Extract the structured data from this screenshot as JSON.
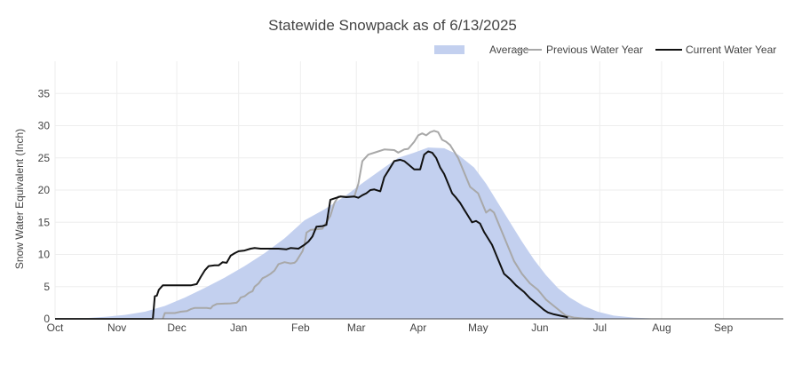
{
  "chart_data": {
    "type": "area",
    "title": "Statewide Snowpack as of 6/13/2025",
    "ylabel": "Snow Water Equivalent (Inch)",
    "xlabel": "",
    "x_unit": "day of water year (Oct 1 = 0)",
    "ylim": [
      0,
      40
    ],
    "yticks": [
      0,
      5,
      10,
      15,
      20,
      25,
      30,
      35
    ],
    "grid": true,
    "legend_position": "top-right",
    "months": [
      {
        "label": "Oct",
        "x": 0
      },
      {
        "label": "Nov",
        "x": 31
      },
      {
        "label": "Dec",
        "x": 61
      },
      {
        "label": "Jan",
        "x": 92
      },
      {
        "label": "Feb",
        "x": 123
      },
      {
        "label": "Mar",
        "x": 151
      },
      {
        "label": "Apr",
        "x": 182
      },
      {
        "label": "May",
        "x": 212
      },
      {
        "label": "Jun",
        "x": 243
      },
      {
        "label": "Jul",
        "x": 273
      },
      {
        "label": "Aug",
        "x": 304
      },
      {
        "label": "Sep",
        "x": 335
      }
    ],
    "xlim": [
      0,
      365
    ],
    "series": [
      {
        "name": "Average",
        "kind": "area",
        "color": "#c3d0ef",
        "points": [
          [
            0,
            0
          ],
          [
            15,
            0.1
          ],
          [
            25,
            0.3
          ],
          [
            35,
            0.6
          ],
          [
            45,
            1.1
          ],
          [
            55,
            2
          ],
          [
            65,
            3.3
          ],
          [
            75,
            4.8
          ],
          [
            85,
            6.4
          ],
          [
            95,
            8.2
          ],
          [
            105,
            10.2
          ],
          [
            115,
            12.5
          ],
          [
            125,
            15.3
          ],
          [
            135,
            17
          ],
          [
            145,
            19
          ],
          [
            155,
            21.3
          ],
          [
            165,
            23.5
          ],
          [
            172,
            25
          ],
          [
            180,
            25.8
          ],
          [
            187,
            26.6
          ],
          [
            195,
            26.5
          ],
          [
            202,
            25.5
          ],
          [
            210,
            23.5
          ],
          [
            216,
            21
          ],
          [
            222,
            18
          ],
          [
            228,
            15
          ],
          [
            234,
            12
          ],
          [
            240,
            9.2
          ],
          [
            246,
            6.8
          ],
          [
            252,
            4.8
          ],
          [
            258,
            3.3
          ],
          [
            265,
            2
          ],
          [
            272,
            1.1
          ],
          [
            280,
            0.5
          ],
          [
            290,
            0.2
          ],
          [
            300,
            0.05
          ],
          [
            310,
            0
          ],
          [
            365,
            0
          ]
        ]
      },
      {
        "name": "Previous Water Year",
        "kind": "line",
        "color": "#a8a8a8",
        "points": [
          [
            54,
            0
          ],
          [
            55,
            0.9
          ],
          [
            60,
            0.9
          ],
          [
            63,
            1.1
          ],
          [
            66,
            1.2
          ],
          [
            68,
            1.5
          ],
          [
            70,
            1.7
          ],
          [
            76,
            1.7
          ],
          [
            78,
            1.6
          ],
          [
            79,
            2
          ],
          [
            81,
            2.3
          ],
          [
            88,
            2.4
          ],
          [
            91,
            2.5
          ],
          [
            92,
            2.8
          ],
          [
            93,
            3.3
          ],
          [
            95,
            3.5
          ],
          [
            97,
            4
          ],
          [
            99,
            4.3
          ],
          [
            100,
            5
          ],
          [
            102,
            5.5
          ],
          [
            104,
            6.3
          ],
          [
            106,
            6.6
          ],
          [
            108,
            7
          ],
          [
            110,
            7.5
          ],
          [
            112,
            8.5
          ],
          [
            115,
            8.8
          ],
          [
            118,
            8.6
          ],
          [
            120,
            8.7
          ],
          [
            121,
            9
          ],
          [
            124,
            10.5
          ],
          [
            125,
            11.5
          ],
          [
            126,
            13.4
          ],
          [
            128,
            13.8
          ],
          [
            134,
            14
          ],
          [
            136,
            15
          ],
          [
            138,
            16
          ],
          [
            140,
            18
          ],
          [
            142,
            19
          ],
          [
            150,
            19
          ],
          [
            152,
            21
          ],
          [
            154,
            24.5
          ],
          [
            157,
            25.5
          ],
          [
            162,
            26
          ],
          [
            165,
            26.3
          ],
          [
            170,
            26.2
          ],
          [
            172,
            25.8
          ],
          [
            175,
            26.3
          ],
          [
            177,
            26.4
          ],
          [
            180,
            27.5
          ],
          [
            182,
            28.5
          ],
          [
            184,
            28.8
          ],
          [
            186,
            28.5
          ],
          [
            188,
            29
          ],
          [
            190,
            29.2
          ],
          [
            192,
            29
          ],
          [
            194,
            27.8
          ],
          [
            196,
            27.5
          ],
          [
            198,
            27
          ],
          [
            200,
            26
          ],
          [
            202,
            25
          ],
          [
            204,
            23.5
          ],
          [
            206,
            22
          ],
          [
            208,
            20.5
          ],
          [
            210,
            20
          ],
          [
            212,
            19.5
          ],
          [
            214,
            18
          ],
          [
            216,
            16.5
          ],
          [
            218,
            17
          ],
          [
            220,
            16.5
          ],
          [
            222,
            15
          ],
          [
            226,
            12
          ],
          [
            230,
            9
          ],
          [
            234,
            7
          ],
          [
            238,
            5.5
          ],
          [
            242,
            4.5
          ],
          [
            246,
            3
          ],
          [
            250,
            2
          ],
          [
            252,
            1.5
          ],
          [
            254,
            1
          ],
          [
            256,
            0.5
          ],
          [
            260,
            0.2
          ],
          [
            265,
            0.05
          ],
          [
            270,
            0
          ]
        ]
      },
      {
        "name": "Current Water Year",
        "kind": "line",
        "color": "#111111",
        "points": [
          [
            0,
            0
          ],
          [
            49,
            0
          ],
          [
            50,
            3.5
          ],
          [
            51,
            3.6
          ],
          [
            52,
            4.5
          ],
          [
            54,
            5.2
          ],
          [
            60,
            5.2
          ],
          [
            68,
            5.2
          ],
          [
            71,
            5.4
          ],
          [
            73,
            6.5
          ],
          [
            75,
            7.5
          ],
          [
            77,
            8.2
          ],
          [
            80,
            8.3
          ],
          [
            82,
            8.3
          ],
          [
            84,
            8.8
          ],
          [
            86,
            8.7
          ],
          [
            88,
            9.8
          ],
          [
            90,
            10.2
          ],
          [
            92,
            10.5
          ],
          [
            95,
            10.6
          ],
          [
            98,
            10.9
          ],
          [
            100,
            11
          ],
          [
            103,
            10.9
          ],
          [
            108,
            10.9
          ],
          [
            112,
            10.9
          ],
          [
            116,
            10.8
          ],
          [
            118,
            11
          ],
          [
            122,
            10.9
          ],
          [
            125,
            11.5
          ],
          [
            127,
            12
          ],
          [
            129,
            12.8
          ],
          [
            131,
            14.3
          ],
          [
            134,
            14.4
          ],
          [
            136,
            14.6
          ],
          [
            138,
            18.5
          ],
          [
            140,
            18.7
          ],
          [
            143,
            19
          ],
          [
            146,
            18.9
          ],
          [
            150,
            19
          ],
          [
            152,
            18.8
          ],
          [
            154,
            19.2
          ],
          [
            156,
            19.5
          ],
          [
            158,
            20
          ],
          [
            160,
            20.1
          ],
          [
            163,
            19.8
          ],
          [
            165,
            22
          ],
          [
            167,
            23
          ],
          [
            170,
            24.5
          ],
          [
            173,
            24.7
          ],
          [
            175,
            24.5
          ],
          [
            177,
            24
          ],
          [
            180,
            23.2
          ],
          [
            183,
            23.2
          ],
          [
            185,
            25.5
          ],
          [
            187,
            26
          ],
          [
            189,
            25.8
          ],
          [
            191,
            25
          ],
          [
            193,
            23.5
          ],
          [
            195,
            22.5
          ],
          [
            197,
            21
          ],
          [
            199,
            19.5
          ],
          [
            201,
            18.8
          ],
          [
            203,
            18
          ],
          [
            205,
            17
          ],
          [
            207,
            16
          ],
          [
            209,
            15
          ],
          [
            211,
            15.2
          ],
          [
            213,
            14.8
          ],
          [
            215,
            13.5
          ],
          [
            217,
            12.5
          ],
          [
            219,
            11.5
          ],
          [
            221,
            10
          ],
          [
            223,
            8.5
          ],
          [
            225,
            7
          ],
          [
            228,
            6.2
          ],
          [
            231,
            5.2
          ],
          [
            235,
            4.2
          ],
          [
            238,
            3.2
          ],
          [
            242,
            2.2
          ],
          [
            245,
            1.4
          ],
          [
            247,
            1
          ],
          [
            250,
            0.7
          ],
          [
            253,
            0.5
          ],
          [
            256,
            0.3
          ],
          [
            257,
            0.2
          ]
        ]
      }
    ]
  }
}
